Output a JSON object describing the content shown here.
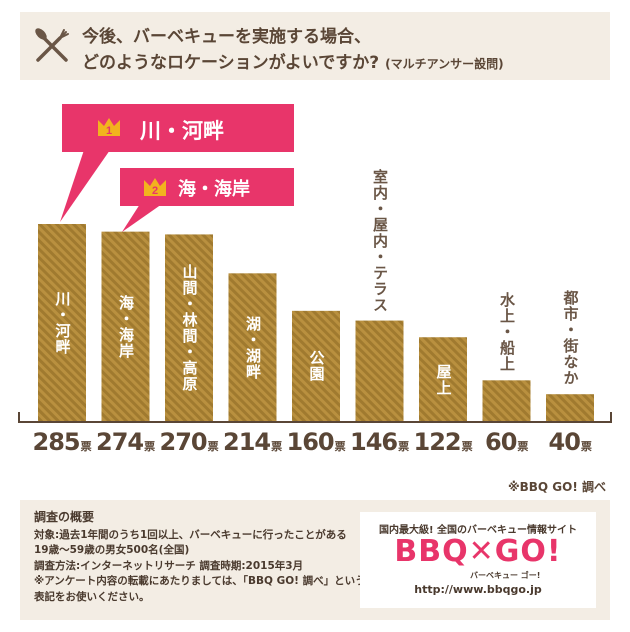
{
  "header": {
    "question_line1": "今後、バーベキューを実施する場合、",
    "question_line2": "どのようなロケーションがよいですか?",
    "question_note": "(マルチアンサー設問)"
  },
  "callouts": [
    {
      "rank": "1",
      "label": "川・河畔"
    },
    {
      "rank": "2",
      "label": "海・海岸"
    }
  ],
  "chart_data": {
    "type": "bar",
    "categories": [
      "川・河畔",
      "海・海岸",
      "山間・林間・高原",
      "湖・湖畔",
      "公園",
      "室内・屋内・テラス",
      "屋上",
      "水上・船上",
      "都市・街なか"
    ],
    "values": [
      285,
      274,
      270,
      214,
      160,
      146,
      122,
      60,
      40
    ],
    "unit": "票",
    "value_labels": [
      "285",
      "274",
      "270",
      "214",
      "160",
      "146",
      "122",
      "60",
      "40"
    ],
    "bar_color": "#b9903f"
  },
  "source": "※BBQ GO! 調べ",
  "survey": {
    "title": "調査の概要",
    "line1": "対象:過去1年間のうち1回以上、バーベキューに行ったことがある",
    "line2": "19歳〜59歳の男女500名(全国)",
    "line3": "調査方法:インターネットリサーチ 調査時期:2015年3月",
    "line4": "※アンケート内容の転載にあたりましては、「BBQ GO! 調べ」という",
    "line5": "表記をお使いください。"
  },
  "brand": {
    "tagline": "国内最大級! 全国のバーベキュー情報サイト",
    "logo": "BBQ✕GO!",
    "kana": "バーベキュー ゴー!",
    "url": "http://www.bbqgo.jp"
  },
  "colors": {
    "accent": "#e8356a",
    "panel": "#f3ede4",
    "crown": "#f2b31e"
  }
}
